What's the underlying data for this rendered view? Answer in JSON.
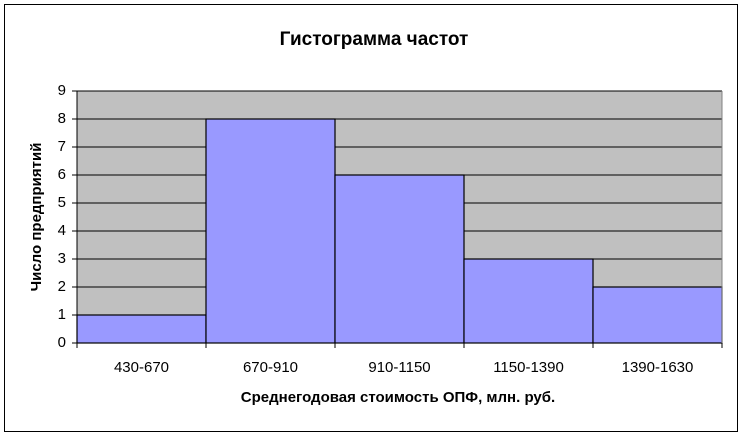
{
  "chart_data": {
    "type": "bar",
    "title": "Гистограмма частот",
    "x_label": "Среднегодовая стоимость ОПФ, млн. руб.",
    "y_label": "Число предприятий",
    "categories": [
      "430-670",
      "670-910",
      "910-1150",
      "1150-1390",
      "1390-1630"
    ],
    "values": [
      1,
      8,
      6,
      3,
      2
    ],
    "color": "#9999ff",
    "plot_background": "#c0c0c0",
    "ylim": [
      0,
      9
    ],
    "yticks": [
      0,
      1,
      2,
      3,
      4,
      5,
      6,
      7,
      8,
      9
    ],
    "grid": true
  }
}
